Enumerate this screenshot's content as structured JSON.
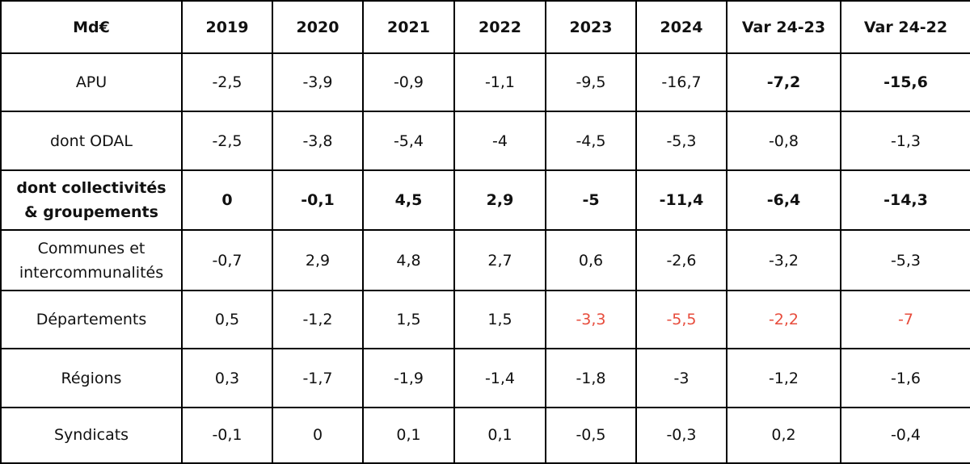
{
  "colors": {
    "text": "#111111",
    "highlight": "#e74c3c",
    "border": "#000000"
  },
  "table": {
    "headers": [
      "Md€",
      "2019",
      "2020",
      "2021",
      "2022",
      "2023",
      "2024",
      "Var 24-23",
      "Var 24-22"
    ],
    "rows": [
      {
        "label": "APU",
        "values": [
          "-2,5",
          "-3,9",
          "-0,9",
          "-1,1",
          "-9,5",
          "-16,7",
          "-7,2",
          "-15,6"
        ]
      },
      {
        "label": "dont ODAL",
        "values": [
          "-2,5",
          "-3,8",
          "-5,4",
          "-4",
          "-4,5",
          "-5,3",
          "-0,8",
          "-1,3"
        ]
      },
      {
        "label_line1": "dont collectivités",
        "label_line2": "& groupements",
        "values": [
          "0",
          "-0,1",
          "4,5",
          "2,9",
          "-5",
          "-11,4",
          "-6,4",
          "-14,3"
        ]
      },
      {
        "label_line1": "Communes et",
        "label_line2": "intercommunalités",
        "values": [
          "-0,7",
          "2,9",
          "4,8",
          "2,7",
          "0,6",
          "-2,6",
          "-3,2",
          "-5,3"
        ]
      },
      {
        "label": "Départements",
        "values": [
          "0,5",
          "-1,2",
          "1,5",
          "1,5",
          "-3,3",
          "-5,5",
          "-2,2",
          "-7"
        ]
      },
      {
        "label": "Régions",
        "values": [
          "0,3",
          "-1,7",
          "-1,9",
          "-1,4",
          "-1,8",
          "-3",
          "-1,2",
          "-1,6"
        ]
      },
      {
        "label": "Syndicats",
        "values": [
          "-0,1",
          "0",
          "0,1",
          "0,1",
          "-0,5",
          "-0,3",
          "0,2",
          "-0,4"
        ]
      }
    ]
  }
}
